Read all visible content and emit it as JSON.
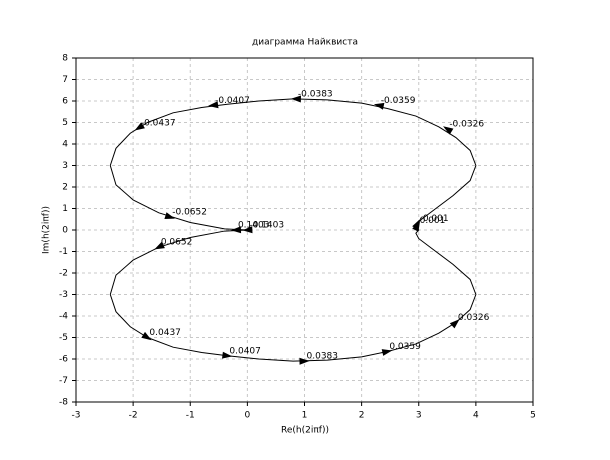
{
  "chart_data": {
    "type": "line",
    "title": "диаграмма Найквиста",
    "x_label": "Re(h(2iπf))",
    "y_label": "Im(h(2iπf))",
    "x": [
      0,
      -0.4,
      -1.0,
      -1.55,
      -2.0,
      -2.3,
      -2.4,
      -2.3,
      -2.05,
      -1.75,
      -1.3,
      -0.8,
      -0.35,
      0.2,
      0.8,
      1.4,
      2.0,
      2.45,
      2.95,
      3.35,
      3.65,
      3.9,
      4.0,
      3.9,
      3.6,
      3.25,
      3.0,
      2.95,
      3.0,
      2.95,
      3.0,
      3.25,
      3.6,
      3.9,
      4.0,
      3.9,
      3.65,
      3.35,
      2.95,
      2.45,
      2.0,
      1.4,
      0.8,
      0.2,
      -0.35,
      -0.8,
      -1.3,
      -1.75,
      -2.05,
      -2.3,
      -2.4,
      -2.3,
      -2.0,
      -1.55,
      -1.0,
      -0.4,
      0
    ],
    "y": [
      0,
      -0.05,
      -0.35,
      -0.8,
      -1.4,
      -2.1,
      -3.0,
      -3.8,
      -4.5,
      -5.0,
      -5.45,
      -5.7,
      -5.85,
      -6.0,
      -6.1,
      -6.05,
      -5.9,
      -5.65,
      -5.3,
      -4.8,
      -4.3,
      -3.7,
      -3.0,
      -2.3,
      -1.6,
      -0.9,
      -0.4,
      -0.15,
      0,
      0.15,
      0.4,
      0.9,
      1.6,
      2.3,
      3.0,
      3.7,
      4.3,
      4.8,
      5.3,
      5.65,
      5.9,
      6.05,
      6.1,
      6.0,
      5.85,
      5.7,
      5.45,
      5.0,
      4.5,
      3.8,
      3.0,
      2.1,
      1.4,
      0.8,
      0.35,
      0.05,
      0
    ],
    "color": "#000000",
    "xlim": [
      -3,
      5
    ],
    "xticks": [
      -3,
      -2,
      -1,
      0,
      1,
      2,
      3,
      4,
      5
    ],
    "ylim": [
      -8,
      8
    ],
    "yticks": [
      -8,
      -7,
      -6,
      -5,
      -4,
      -3,
      -2,
      -1,
      0,
      1,
      2,
      3,
      4,
      5,
      6,
      7,
      8
    ],
    "grid": true,
    "annotations": [
      {
        "text": "-0.0437",
        "x": -1.9,
        "y": 4.75
      },
      {
        "text": "-0.0407",
        "x": -0.6,
        "y": 5.8
      },
      {
        "text": "-0.0383",
        "x": 0.85,
        "y": 6.1
      },
      {
        "text": "-0.0359",
        "x": 2.3,
        "y": 5.8
      },
      {
        "text": "-0.0326",
        "x": 3.5,
        "y": 4.7
      },
      {
        "text": "-0.0652",
        "x": -1.35,
        "y": 0.6
      },
      {
        "text": "-0.001",
        "x": 2.98,
        "y": 0.3
      },
      {
        "text": "0.1403",
        "x": -0.2,
        "y": 0
      },
      {
        "text": "-0.1403",
        "x": 0.0,
        "y": 0
      },
      {
        "text": "0.0652",
        "x": -1.55,
        "y": -0.8
      },
      {
        "text": "0.0437",
        "x": -1.75,
        "y": -5.0
      },
      {
        "text": "0.0407",
        "x": -0.35,
        "y": -5.85
      },
      {
        "text": "0.0383",
        "x": 1.0,
        "y": -6.1
      },
      {
        "text": "0.0359",
        "x": 2.45,
        "y": -5.65
      },
      {
        "text": "0.0326",
        "x": 3.65,
        "y": -4.3
      },
      {
        "text": "0.001",
        "x": 2.98,
        "y": 0.2
      }
    ]
  }
}
